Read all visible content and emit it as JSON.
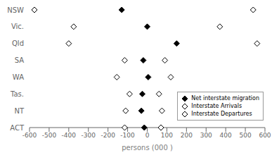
{
  "chart_data": {
    "type": "dot",
    "orientation": "horizontal",
    "categories": [
      "NSW",
      "Vic.",
      "Qld",
      "SA",
      "WA",
      "Tas.",
      "NT",
      "ACT"
    ],
    "xlabel": "persons (000 )",
    "xlim": [
      -600,
      600
    ],
    "xticks": [
      -600,
      -500,
      -400,
      -300,
      -200,
      -100,
      0,
      100,
      200,
      300,
      400,
      500,
      600
    ],
    "legend": "lower right",
    "series": [
      {
        "name": "Net interstate migration",
        "values": [
          -130,
          0,
          150,
          -20,
          5,
          -25,
          -30,
          -15
        ],
        "color": "#000000",
        "marker": "filled_diamond"
      },
      {
        "name": "Interstate Arrivals",
        "values": [
          540,
          370,
          560,
          90,
          120,
          60,
          75,
          70
        ],
        "color": "#000000",
        "marker": "open_diamond"
      },
      {
        "name": "Interstate Departures",
        "values": [
          -575,
          -375,
          -400,
          -115,
          -155,
          -90,
          -110,
          -115
        ],
        "color": "#000000",
        "marker": "open_diamond"
      }
    ]
  }
}
